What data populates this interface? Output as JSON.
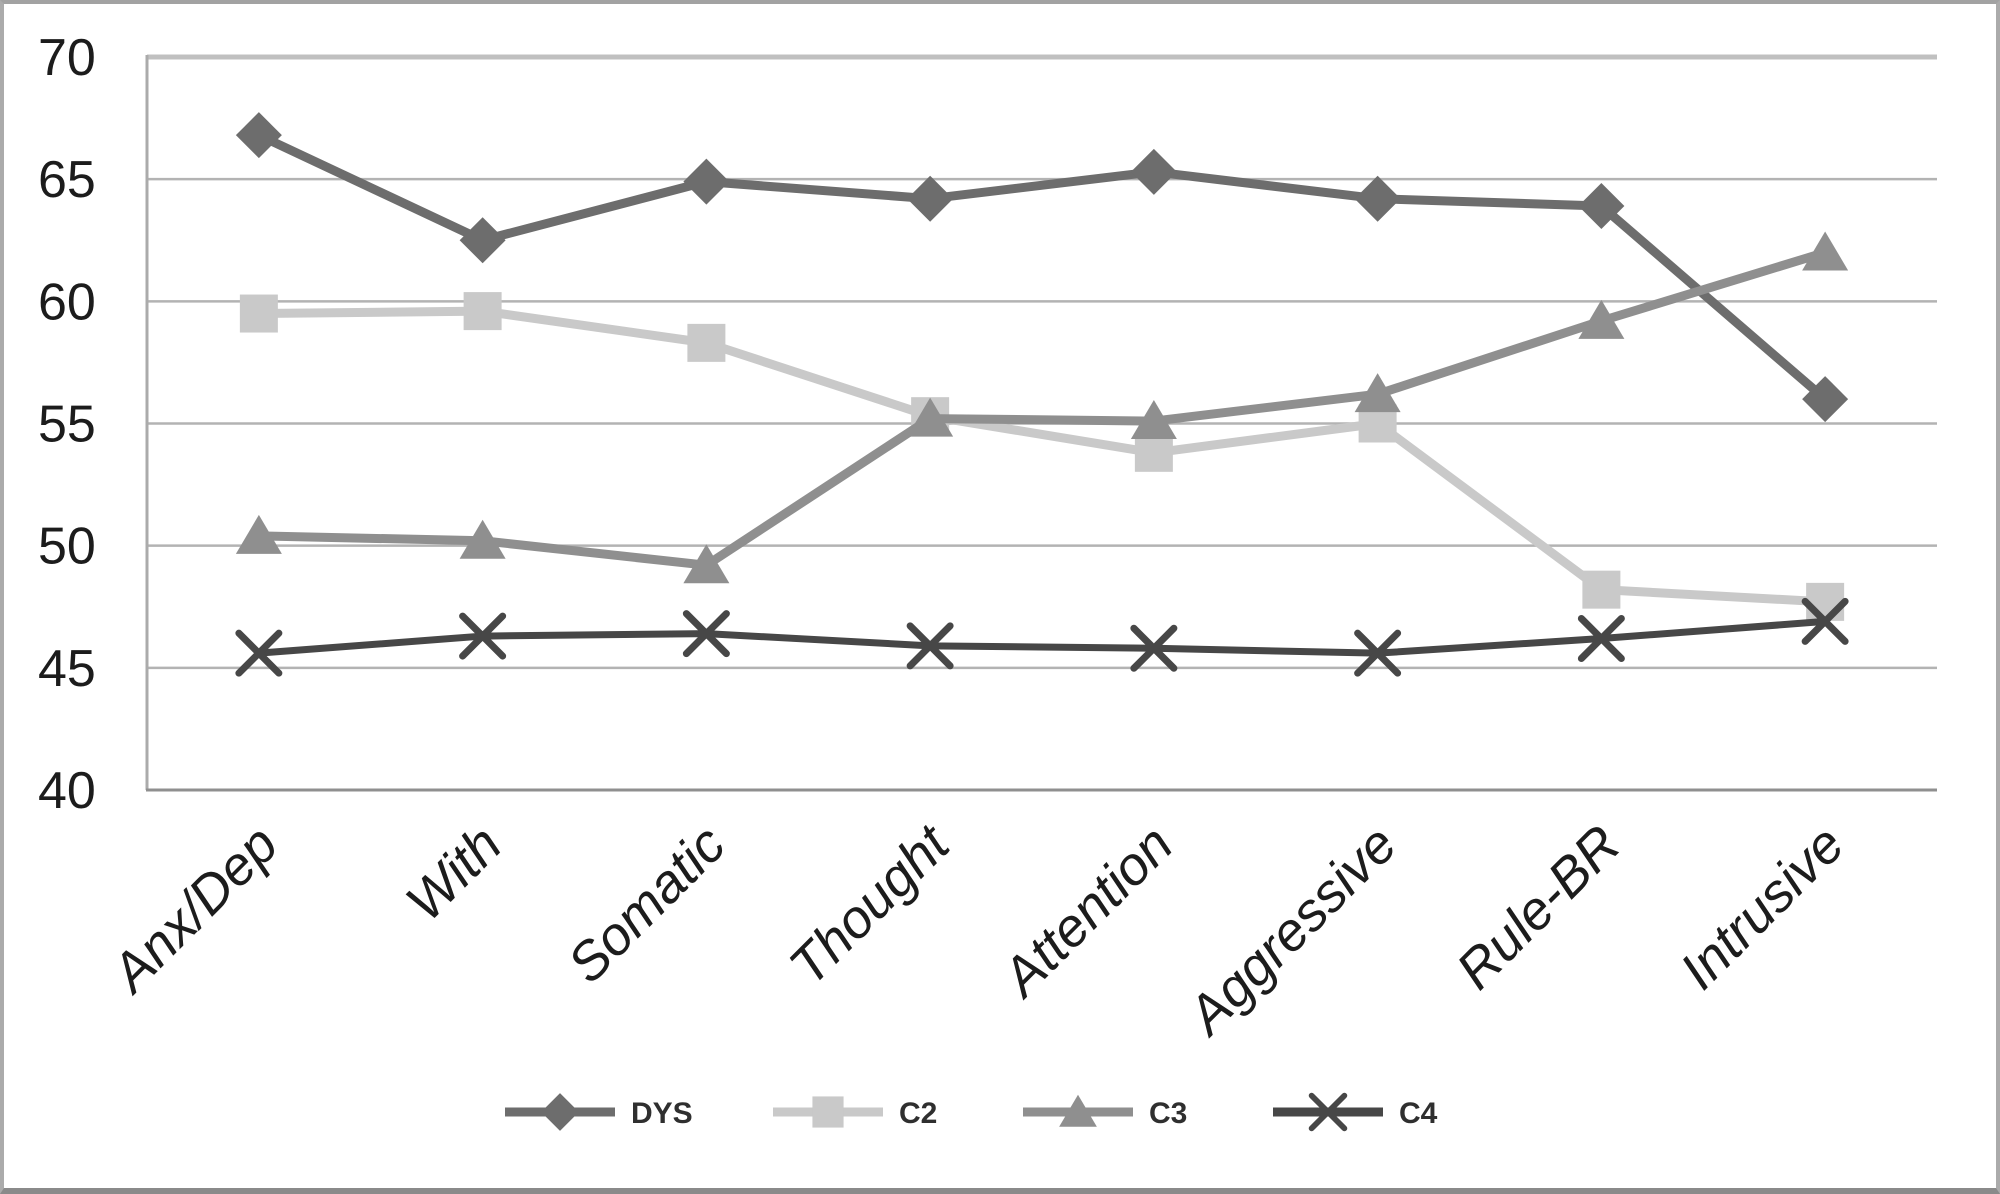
{
  "figure": {
    "title": "",
    "background": "#ffffff",
    "outer_border_color": "#a2a2a2"
  },
  "chart_data": {
    "type": "line",
    "title": "",
    "xlabel": "",
    "ylabel": "",
    "categories": [
      "Anx/Dep",
      "With",
      "Somatic",
      "Thought",
      "Attention",
      "Aggressive",
      "Rule-BR",
      "Intrusive"
    ],
    "series": [
      {
        "name": "DYS",
        "marker": "diamond",
        "color": "#6d6d6d",
        "line_width": 9,
        "values": [
          66.8,
          62.5,
          64.9,
          64.2,
          65.3,
          64.2,
          63.9,
          56.0
        ]
      },
      {
        "name": "C2",
        "marker": "square",
        "color": "#c9c9c9",
        "line_width": 9,
        "values": [
          59.5,
          59.6,
          58.3,
          55.3,
          53.8,
          55.0,
          48.2,
          47.7
        ]
      },
      {
        "name": "C3",
        "marker": "triangle",
        "color": "#8f8f8f",
        "line_width": 9,
        "values": [
          50.4,
          50.2,
          49.2,
          55.2,
          55.1,
          56.2,
          59.2,
          62.0
        ]
      },
      {
        "name": "C4",
        "marker": "x",
        "color": "#474747",
        "line_width": 7,
        "values": [
          45.6,
          46.3,
          46.4,
          45.9,
          45.8,
          45.6,
          46.2,
          46.9
        ]
      }
    ],
    "ylim": [
      40,
      70
    ],
    "y_ticks": [
      40,
      45,
      50,
      55,
      60,
      65,
      70
    ],
    "grid": true,
    "legend_position": "bottom",
    "legend_labels": [
      "DYS",
      "C2",
      "C3",
      "C4"
    ],
    "colors": {
      "gridline": "#b3b3b3",
      "top_border": "#c0c0c0",
      "y_axis_line": "#ababab",
      "x_axis_line": "#8f8f8f",
      "tick_text": "#1c1c1c"
    }
  }
}
